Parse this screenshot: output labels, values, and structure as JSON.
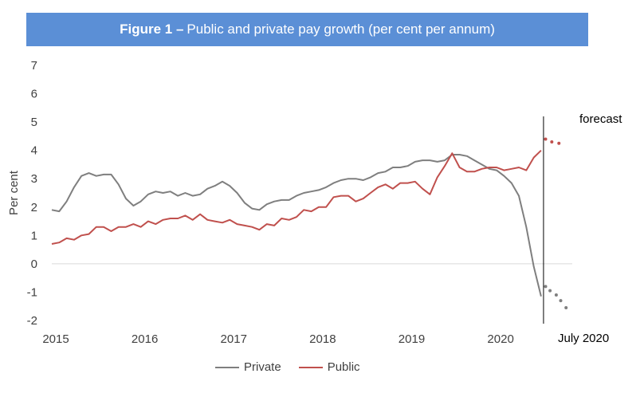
{
  "chart_data": {
    "type": "line",
    "title_bold": "Figure 1 –",
    "title_rest": "Public and private pay growth (per cent per annum)",
    "ylabel": "Per cent",
    "xlabel": "",
    "ylim": [
      -2,
      7
    ],
    "yticks": [
      "7",
      "6",
      "5",
      "4",
      "3",
      "2",
      "1",
      "0",
      "-1",
      "-2"
    ],
    "xlim": [
      2015.0,
      2020.85
    ],
    "xticks": [
      "2015",
      "2016",
      "2017",
      "2018",
      "2019",
      "2020"
    ],
    "marker_label": "July 2020",
    "marker_x": 2020.5,
    "forecast_label": "forecast",
    "series": [
      {
        "name": "Private",
        "color": "#7f7f7f",
        "x": [
          2015.0,
          2015.083,
          2015.167,
          2015.25,
          2015.333,
          2015.417,
          2015.5,
          2015.583,
          2015.667,
          2015.75,
          2015.833,
          2015.917,
          2016.0,
          2016.083,
          2016.167,
          2016.25,
          2016.333,
          2016.417,
          2016.5,
          2016.583,
          2016.667,
          2016.75,
          2016.833,
          2016.917,
          2017.0,
          2017.083,
          2017.167,
          2017.25,
          2017.333,
          2017.417,
          2017.5,
          2017.583,
          2017.667,
          2017.75,
          2017.833,
          2017.917,
          2018.0,
          2018.083,
          2018.167,
          2018.25,
          2018.333,
          2018.417,
          2018.5,
          2018.583,
          2018.667,
          2018.75,
          2018.833,
          2018.917,
          2019.0,
          2019.083,
          2019.167,
          2019.25,
          2019.333,
          2019.417,
          2019.5,
          2019.583,
          2019.667,
          2019.75,
          2019.833,
          2019.917,
          2020.0,
          2020.083,
          2020.167,
          2020.25,
          2020.333,
          2020.417,
          2020.5
        ],
        "values": [
          1.9,
          1.85,
          2.2,
          2.7,
          3.1,
          3.2,
          3.1,
          3.15,
          3.15,
          2.8,
          2.3,
          2.05,
          2.2,
          2.45,
          2.55,
          2.5,
          2.55,
          2.4,
          2.5,
          2.4,
          2.45,
          2.65,
          2.75,
          2.9,
          2.75,
          2.5,
          2.15,
          1.95,
          1.9,
          2.1,
          2.2,
          2.25,
          2.25,
          2.4,
          2.5,
          2.55,
          2.6,
          2.7,
          2.85,
          2.95,
          3.0,
          3.0,
          2.95,
          3.05,
          3.2,
          3.25,
          3.4,
          3.4,
          3.45,
          3.6,
          3.65,
          3.65,
          3.6,
          3.65,
          3.85,
          3.85,
          3.8,
          3.65,
          3.5,
          3.35,
          3.3,
          3.1,
          2.85,
          2.4,
          1.3,
          -0.1,
          -1.15
        ],
        "forecast_x": [
          2020.5,
          2020.55,
          2020.6,
          2020.67,
          2020.72,
          2020.78
        ],
        "forecast_values": [
          -1.15,
          -0.8,
          -0.95,
          -1.1,
          -1.3,
          -1.55
        ]
      },
      {
        "name": "Public",
        "color": "#c0504d",
        "x": [
          2015.0,
          2015.083,
          2015.167,
          2015.25,
          2015.333,
          2015.417,
          2015.5,
          2015.583,
          2015.667,
          2015.75,
          2015.833,
          2015.917,
          2016.0,
          2016.083,
          2016.167,
          2016.25,
          2016.333,
          2016.417,
          2016.5,
          2016.583,
          2016.667,
          2016.75,
          2016.833,
          2016.917,
          2017.0,
          2017.083,
          2017.167,
          2017.25,
          2017.333,
          2017.417,
          2017.5,
          2017.583,
          2017.667,
          2017.75,
          2017.833,
          2017.917,
          2018.0,
          2018.083,
          2018.167,
          2018.25,
          2018.333,
          2018.417,
          2018.5,
          2018.583,
          2018.667,
          2018.75,
          2018.833,
          2018.917,
          2019.0,
          2019.083,
          2019.167,
          2019.25,
          2019.333,
          2019.417,
          2019.5,
          2019.583,
          2019.667,
          2019.75,
          2019.833,
          2019.917,
          2020.0,
          2020.083,
          2020.167,
          2020.25,
          2020.333,
          2020.417,
          2020.5
        ],
        "values": [
          0.7,
          0.75,
          0.9,
          0.85,
          1.0,
          1.05,
          1.3,
          1.3,
          1.15,
          1.3,
          1.3,
          1.4,
          1.3,
          1.5,
          1.4,
          1.55,
          1.6,
          1.6,
          1.7,
          1.55,
          1.75,
          1.55,
          1.5,
          1.45,
          1.55,
          1.4,
          1.35,
          1.3,
          1.2,
          1.4,
          1.35,
          1.6,
          1.55,
          1.65,
          1.9,
          1.85,
          2.0,
          2.0,
          2.35,
          2.4,
          2.4,
          2.2,
          2.3,
          2.5,
          2.7,
          2.8,
          2.65,
          2.85,
          2.85,
          2.9,
          2.65,
          2.45,
          3.05,
          3.45,
          3.9,
          3.4,
          3.25,
          3.25,
          3.35,
          3.4,
          3.4,
          3.3,
          3.35,
          3.4,
          3.3,
          3.75,
          4.0
        ],
        "forecast_x": [
          2020.5,
          2020.55,
          2020.62,
          2020.7
        ],
        "forecast_values": [
          4.0,
          4.4,
          4.3,
          4.25
        ]
      }
    ]
  }
}
